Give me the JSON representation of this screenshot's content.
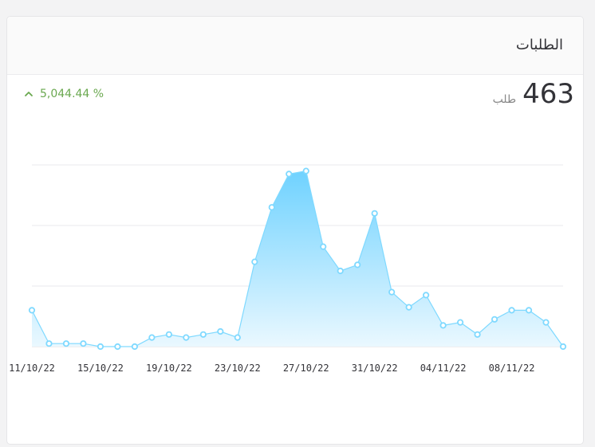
{
  "card": {
    "title": "الطلبات",
    "change_text": "5,044.44 %",
    "total_value": "463",
    "total_unit": "طلب"
  },
  "colors": {
    "line": "#7fd9ff",
    "area_top": "#6fd2ff",
    "area_bottom": "#eaf8ff",
    "grid": "#e9e9ec",
    "positive": "#6aa84f"
  },
  "chart_data": {
    "type": "area",
    "x": [
      "11/10/22",
      "12/10/22",
      "13/10/22",
      "14/10/22",
      "15/10/22",
      "16/10/22",
      "17/10/22",
      "18/10/22",
      "19/10/22",
      "20/10/22",
      "21/10/22",
      "22/10/22",
      "23/10/22",
      "24/10/22",
      "25/10/22",
      "26/10/22",
      "27/10/22",
      "28/10/22",
      "29/10/22",
      "30/10/22",
      "31/10/22",
      "01/11/22",
      "02/11/22",
      "03/11/22",
      "04/11/22",
      "05/11/22",
      "06/11/22",
      "07/11/22",
      "08/11/22",
      "09/11/22",
      "10/11/22",
      "11/11/22"
    ],
    "tick_labels": [
      "11/10/22",
      "15/10/22",
      "19/10/22",
      "23/10/22",
      "27/10/22",
      "31/10/22",
      "04/11/22",
      "08/11/22"
    ],
    "series": [
      {
        "values": [
          12,
          1,
          1,
          1,
          0,
          0,
          0,
          3,
          4,
          3,
          4,
          5,
          3,
          28,
          46,
          57,
          58,
          33,
          25,
          27,
          44,
          18,
          13,
          17,
          7,
          8,
          4,
          9,
          12,
          12,
          8,
          0
        ]
      }
    ],
    "ylim": [
      0,
      60
    ],
    "grid": true
  }
}
